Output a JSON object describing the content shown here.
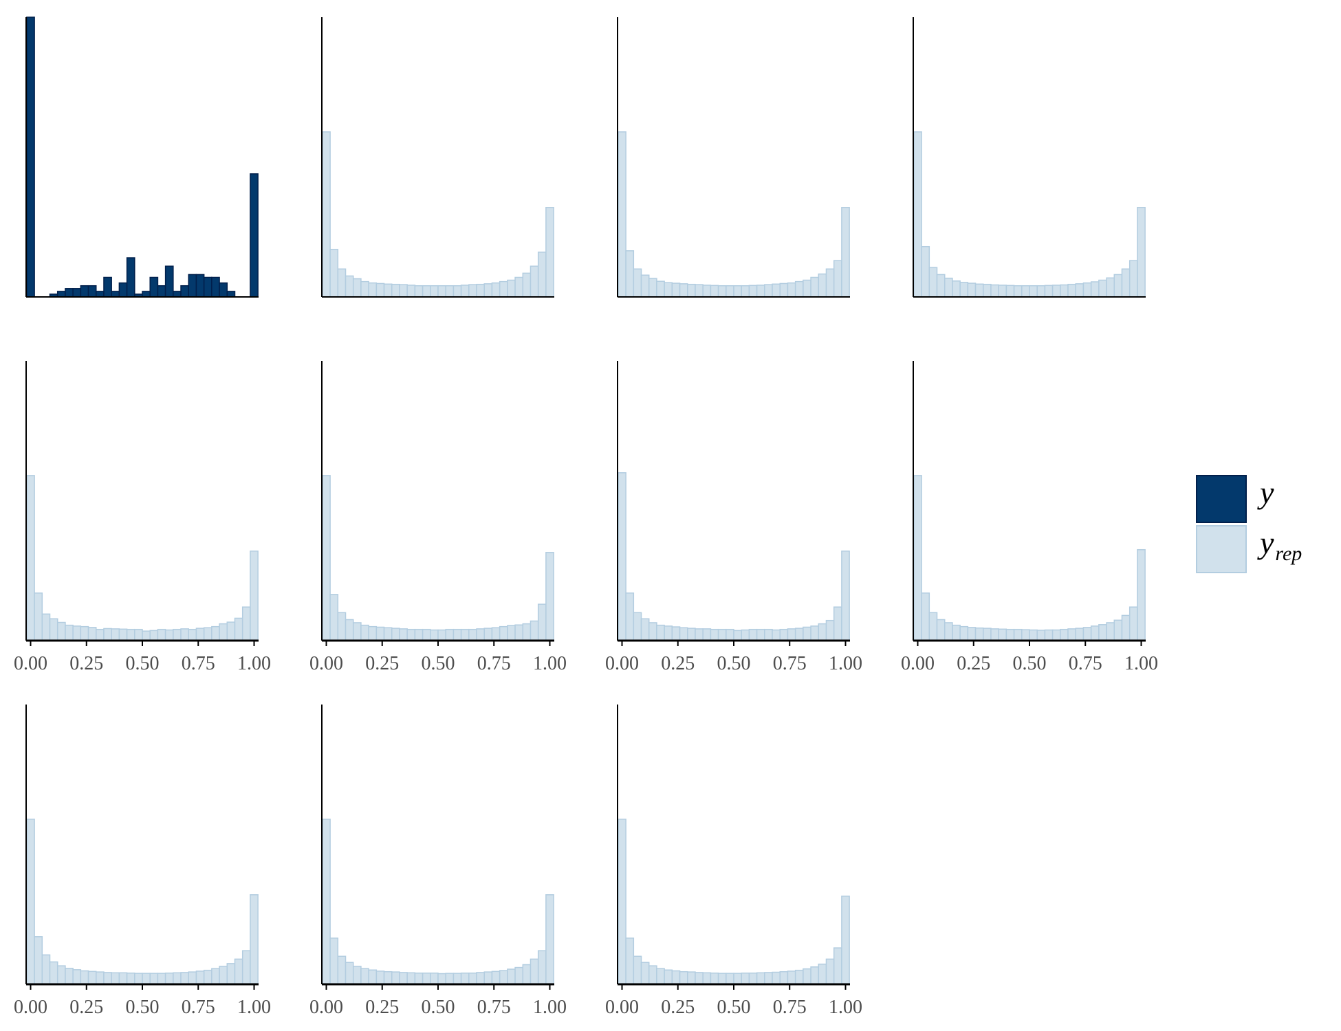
{
  "colors": {
    "y_fill": "#03396c",
    "y_stroke": "#011f4b",
    "yrep_fill": "#d1e1ec",
    "yrep_stroke": "#b3cde0",
    "axis": "#000000",
    "tick_text": "#4d4d4d"
  },
  "legend": {
    "position": "right",
    "y_symbol": "y",
    "yrep_symbol": "y",
    "yrep_subscript": "rep"
  },
  "chart_data": {
    "type": "bar",
    "description_kind": "grid of histograms (posterior predictive check)",
    "grid": {
      "rows": 3,
      "cols": 4,
      "panels": 11
    },
    "xlim": [
      -0.02,
      1.02
    ],
    "ylim": [
      0,
      1
    ],
    "y_axis_labels": false,
    "bins": 30,
    "x_tick_labels": [
      "0.00",
      "0.25",
      "0.50",
      "0.75",
      "1.00"
    ],
    "x_ticks": [
      0,
      0.25,
      0.5,
      0.75,
      1.0
    ],
    "series": [
      {
        "name": "y",
        "values": [
          1.0,
          0,
          0,
          0.01,
          0.02,
          0.03,
          0.03,
          0.04,
          0.04,
          0.02,
          0.07,
          0.02,
          0.05,
          0.14,
          0.01,
          0.02,
          0.07,
          0.04,
          0.11,
          0.02,
          0.04,
          0.08,
          0.08,
          0.07,
          0.07,
          0.05,
          0.02,
          0,
          0,
          0.44
        ]
      },
      {
        "name": "yrep",
        "values": [
          0.59,
          0.17,
          0.1,
          0.075,
          0.065,
          0.055,
          0.05,
          0.048,
          0.046,
          0.045,
          0.044,
          0.042,
          0.04,
          0.04,
          0.04,
          0.04,
          0.04,
          0.04,
          0.042,
          0.044,
          0.045,
          0.047,
          0.05,
          0.055,
          0.06,
          0.07,
          0.085,
          0.11,
          0.16,
          0.32
        ]
      },
      {
        "name": "yrep",
        "values": [
          0.59,
          0.165,
          0.1,
          0.078,
          0.066,
          0.056,
          0.051,
          0.049,
          0.047,
          0.045,
          0.044,
          0.042,
          0.041,
          0.04,
          0.04,
          0.04,
          0.04,
          0.041,
          0.042,
          0.044,
          0.046,
          0.048,
          0.05,
          0.055,
          0.06,
          0.07,
          0.082,
          0.1,
          0.13,
          0.32
        ]
      },
      {
        "name": "yrep",
        "values": [
          0.59,
          0.18,
          0.105,
          0.08,
          0.067,
          0.057,
          0.052,
          0.049,
          0.046,
          0.045,
          0.043,
          0.042,
          0.041,
          0.04,
          0.04,
          0.04,
          0.04,
          0.041,
          0.042,
          0.043,
          0.045,
          0.047,
          0.05,
          0.054,
          0.06,
          0.068,
          0.08,
          0.1,
          0.13,
          0.32
        ]
      },
      {
        "name": "yrep",
        "values": [
          0.59,
          0.17,
          0.095,
          0.078,
          0.065,
          0.055,
          0.052,
          0.05,
          0.047,
          0.04,
          0.043,
          0.042,
          0.041,
          0.04,
          0.04,
          0.034,
          0.036,
          0.04,
          0.038,
          0.04,
          0.042,
          0.04,
          0.044,
          0.046,
          0.05,
          0.06,
          0.066,
          0.08,
          0.12,
          0.32
        ]
      },
      {
        "name": "yrep",
        "values": [
          0.59,
          0.165,
          0.1,
          0.075,
          0.064,
          0.055,
          0.05,
          0.048,
          0.046,
          0.044,
          0.042,
          0.04,
          0.04,
          0.04,
          0.038,
          0.038,
          0.04,
          0.04,
          0.04,
          0.04,
          0.042,
          0.044,
          0.046,
          0.05,
          0.054,
          0.056,
          0.06,
          0.07,
          0.13,
          0.315
        ]
      },
      {
        "name": "yrep",
        "values": [
          0.6,
          0.17,
          0.1,
          0.078,
          0.064,
          0.055,
          0.052,
          0.049,
          0.046,
          0.044,
          0.042,
          0.042,
          0.04,
          0.04,
          0.04,
          0.036,
          0.038,
          0.04,
          0.04,
          0.04,
          0.038,
          0.04,
          0.042,
          0.044,
          0.048,
          0.052,
          0.06,
          0.072,
          0.12,
          0.32
        ]
      },
      {
        "name": "yrep",
        "values": [
          0.59,
          0.17,
          0.1,
          0.075,
          0.064,
          0.055,
          0.05,
          0.047,
          0.045,
          0.044,
          0.042,
          0.041,
          0.04,
          0.04,
          0.039,
          0.038,
          0.037,
          0.038,
          0.038,
          0.04,
          0.042,
          0.044,
          0.047,
          0.052,
          0.057,
          0.064,
          0.073,
          0.09,
          0.12,
          0.325
        ]
      },
      {
        "name": "yrep",
        "values": [
          0.59,
          0.17,
          0.105,
          0.08,
          0.066,
          0.057,
          0.052,
          0.048,
          0.046,
          0.044,
          0.042,
          0.041,
          0.041,
          0.04,
          0.039,
          0.039,
          0.039,
          0.039,
          0.04,
          0.041,
          0.042,
          0.044,
          0.047,
          0.05,
          0.056,
          0.064,
          0.074,
          0.09,
          0.12,
          0.32
        ]
      },
      {
        "name": "yrep",
        "values": [
          0.59,
          0.165,
          0.1,
          0.078,
          0.064,
          0.056,
          0.051,
          0.047,
          0.045,
          0.044,
          0.042,
          0.041,
          0.04,
          0.04,
          0.04,
          0.038,
          0.039,
          0.039,
          0.04,
          0.04,
          0.042,
          0.044,
          0.046,
          0.049,
          0.054,
          0.06,
          0.07,
          0.09,
          0.12,
          0.32
        ]
      },
      {
        "name": "yrep",
        "values": [
          0.59,
          0.165,
          0.1,
          0.078,
          0.066,
          0.056,
          0.051,
          0.048,
          0.045,
          0.044,
          0.042,
          0.041,
          0.04,
          0.039,
          0.039,
          0.039,
          0.04,
          0.04,
          0.041,
          0.042,
          0.043,
          0.045,
          0.047,
          0.05,
          0.055,
          0.062,
          0.072,
          0.09,
          0.13,
          0.315
        ]
      }
    ]
  }
}
